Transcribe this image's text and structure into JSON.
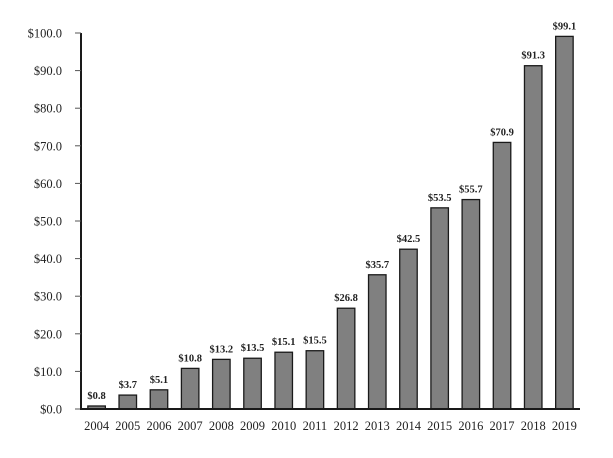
{
  "chart_data": {
    "type": "bar",
    "title": "",
    "xlabel": "",
    "ylabel": "",
    "categories": [
      "2004",
      "2005",
      "2006",
      "2007",
      "2008",
      "2009",
      "2010",
      "2011",
      "2012",
      "2013",
      "2014",
      "2015",
      "2016",
      "2017",
      "2018",
      "2019"
    ],
    "values": [
      0.8,
      3.7,
      5.1,
      10.8,
      13.2,
      13.5,
      15.1,
      15.5,
      26.8,
      35.7,
      42.5,
      53.5,
      55.7,
      70.9,
      91.3,
      99.1
    ],
    "data_labels": [
      "$0.8",
      "$3.7",
      "$5.1",
      "$10.8",
      "$13.2",
      "$13.5",
      "$15.1",
      "$15.5",
      "$26.8",
      "$35.7",
      "$42.5",
      "$53.5",
      "$55.7",
      "$70.9",
      "$91.3",
      "$99.1"
    ],
    "ylim": [
      0,
      100
    ],
    "yticks": [
      0,
      10,
      20,
      30,
      40,
      50,
      60,
      70,
      80,
      90,
      100
    ],
    "ytick_labels": [
      "$0.0",
      "$10.0",
      "$20.0",
      "$30.0",
      "$40.0",
      "$50.0",
      "$60.0",
      "$70.0",
      "$80.0",
      "$90.0",
      "$100.0"
    ],
    "grid": false,
    "legend": null,
    "bar_color": "#808080",
    "bar_edge_color": "#1a1a1a"
  }
}
